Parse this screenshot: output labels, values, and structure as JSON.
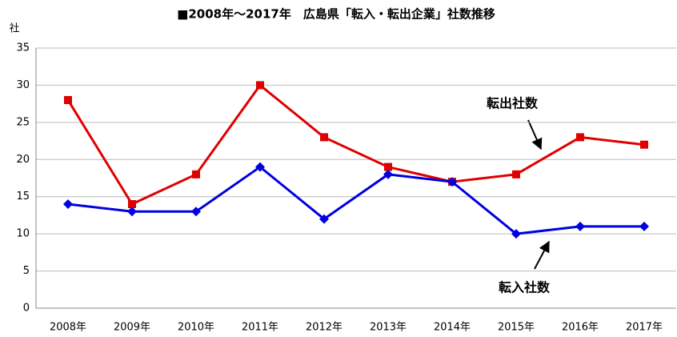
{
  "chart_data": {
    "type": "line",
    "title": "■2008年～2017年　広島県「転入・転出企業」社数推移",
    "y_label": "社",
    "categories": [
      "2008年",
      "2009年",
      "2010年",
      "2011年",
      "2012年",
      "2013年",
      "2014年",
      "2015年",
      "2016年",
      "2017年"
    ],
    "series": [
      {
        "name": "転出社数",
        "color": "#e00000",
        "marker": "square",
        "values": [
          28,
          14,
          18,
          30,
          23,
          19,
          17,
          18,
          23,
          22
        ]
      },
      {
        "name": "転入社数",
        "color": "#0000e0",
        "marker": "diamond",
        "values": [
          14,
          13,
          13,
          19,
          12,
          18,
          17,
          10,
          11,
          11
        ]
      }
    ],
    "ylim": [
      0,
      35
    ],
    "yticks": [
      0,
      5,
      10,
      15,
      20,
      25,
      30,
      35
    ],
    "grid": true
  }
}
